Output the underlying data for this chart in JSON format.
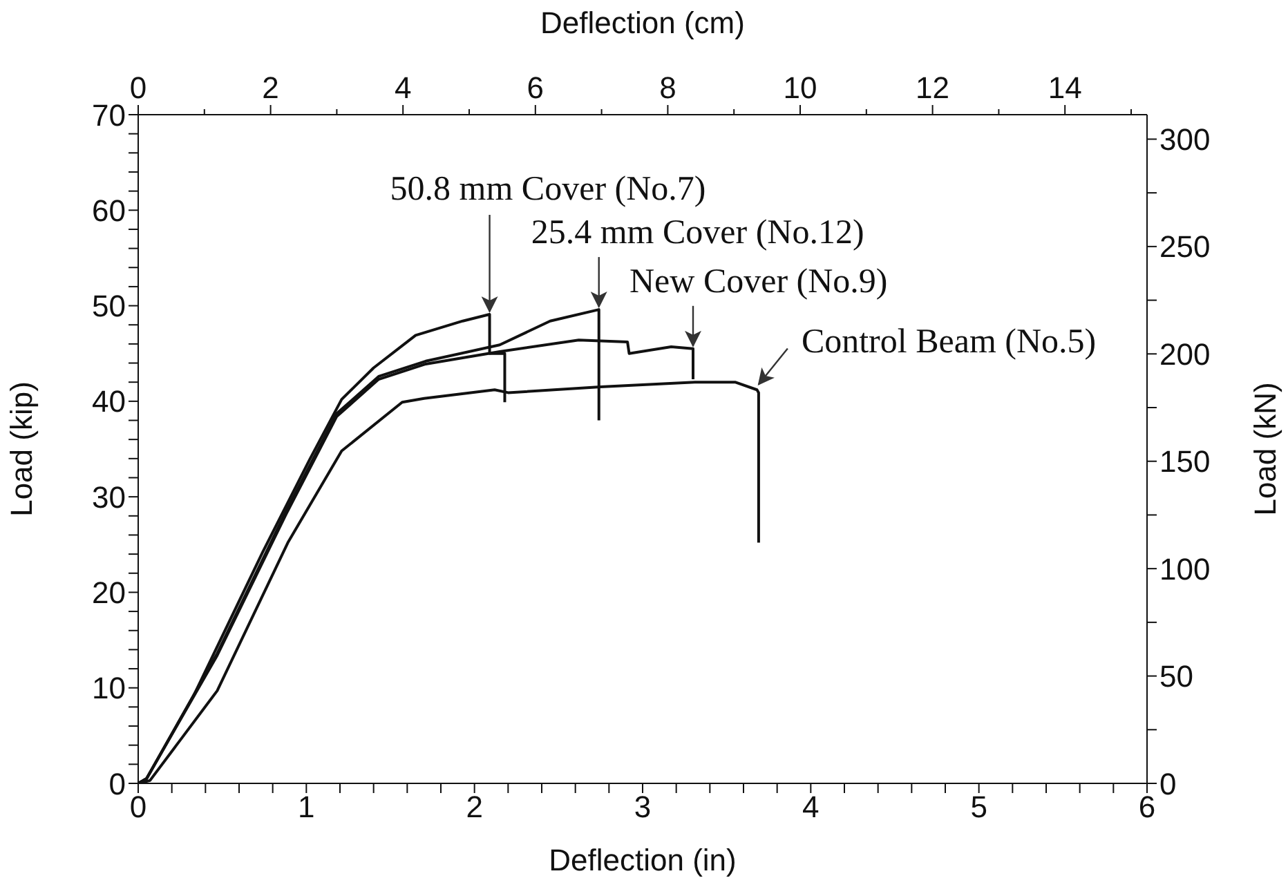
{
  "chart_data": {
    "type": "line",
    "xlabel": "Deflection (in)",
    "ylabel": "Load (kip)",
    "x2label": "Deflection (cm)",
    "y2label": "Load (kN)",
    "xlim": [
      0,
      6
    ],
    "xticks": [
      0,
      {
        "value": 0.2,
        "label": null
      },
      {
        "value": 0.4,
        "label": null
      },
      {
        "value": 0.6,
        "label": null
      },
      {
        "value": 0.8,
        "label": null
      },
      1,
      {
        "value": 1.2,
        "label": null
      },
      {
        "value": 1.4,
        "label": null
      },
      {
        "value": 1.6,
        "label": null
      },
      {
        "value": 1.8,
        "label": null
      },
      2,
      {
        "value": 2.2,
        "label": null
      },
      {
        "value": 2.4,
        "label": null
      },
      {
        "value": 2.6,
        "label": null
      },
      {
        "value": 2.8,
        "label": null
      },
      3,
      {
        "value": 3.2,
        "label": null
      },
      {
        "value": 3.4,
        "label": null
      },
      {
        "value": 3.6,
        "label": null
      },
      {
        "value": 3.8,
        "label": null
      },
      4,
      {
        "value": 4.2,
        "label": null
      },
      {
        "value": 4.4,
        "label": null
      },
      {
        "value": 4.6,
        "label": null
      },
      {
        "value": 4.8,
        "label": null
      },
      5,
      {
        "value": 5.2,
        "label": null
      },
      {
        "value": 5.4,
        "label": null
      },
      {
        "value": 5.6,
        "label": null
      },
      {
        "value": 5.8,
        "label": null
      },
      6
    ],
    "x2lim": [
      0,
      15.24
    ],
    "x2ticks": [
      0,
      {
        "value": 1,
        "label": null
      },
      2,
      {
        "value": 3,
        "label": null
      },
      4,
      {
        "value": 5,
        "label": null
      },
      6,
      {
        "value": 7,
        "label": null
      },
      8,
      {
        "value": 9,
        "label": null
      },
      10,
      {
        "value": 11,
        "label": null
      },
      12,
      {
        "value": 13,
        "label": null
      },
      14,
      {
        "value": 15,
        "label": null
      }
    ],
    "ylim": [
      0,
      70
    ],
    "yticks": [
      0,
      {
        "value": 2,
        "label": null
      },
      {
        "value": 4,
        "label": null
      },
      {
        "value": 6,
        "label": null
      },
      {
        "value": 8,
        "label": null
      },
      10,
      {
        "value": 12,
        "label": null
      },
      {
        "value": 14,
        "label": null
      },
      {
        "value": 16,
        "label": null
      },
      {
        "value": 18,
        "label": null
      },
      20,
      {
        "value": 22,
        "label": null
      },
      {
        "value": 24,
        "label": null
      },
      {
        "value": 26,
        "label": null
      },
      {
        "value": 28,
        "label": null
      },
      30,
      {
        "value": 32,
        "label": null
      },
      {
        "value": 34,
        "label": null
      },
      {
        "value": 36,
        "label": null
      },
      {
        "value": 38,
        "label": null
      },
      40,
      {
        "value": 42,
        "label": null
      },
      {
        "value": 44,
        "label": null
      },
      {
        "value": 46,
        "label": null
      },
      {
        "value": 48,
        "label": null
      },
      50,
      {
        "value": 52,
        "label": null
      },
      {
        "value": 54,
        "label": null
      },
      {
        "value": 56,
        "label": null
      },
      {
        "value": 58,
        "label": null
      },
      60,
      {
        "value": 62,
        "label": null
      },
      {
        "value": 64,
        "label": null
      },
      {
        "value": 66,
        "label": null
      },
      {
        "value": 68,
        "label": null
      },
      70
    ],
    "y2lim": [
      0,
      311.4
    ],
    "y2ticks": [
      0,
      {
        "value": 25,
        "label": null
      },
      50,
      {
        "value": 75,
        "label": null
      },
      100,
      {
        "value": 125,
        "label": null
      },
      150,
      {
        "value": 175,
        "label": null
      },
      200,
      {
        "value": 225,
        "label": null
      },
      250,
      {
        "value": 275,
        "label": null
      },
      300
    ],
    "grid": false,
    "legend": false,
    "marker": "none",
    "line_style": "solid",
    "series": [
      {
        "color": "#111111",
        "x": [
          0,
          0.05,
          0.33,
          0.74,
          1.02,
          1.21,
          1.4,
          1.65,
          1.93,
          2.09,
          2.09,
          2.18,
          2.18
        ],
        "values": [
          0,
          0.5,
          9.2,
          24.2,
          33.9,
          40.2,
          43.5,
          46.9,
          48.4,
          49.1,
          45.0,
          45.0,
          39.9
        ]
      },
      {
        "color": "#111111",
        "x": [
          0,
          0.05,
          0.47,
          0.88,
          1.18,
          1.43,
          1.71,
          2.15,
          2.45,
          2.74,
          2.74
        ],
        "values": [
          0,
          0.5,
          13.6,
          28.5,
          38.7,
          42.6,
          44.2,
          45.9,
          48.4,
          49.6,
          38.0
        ]
      },
      {
        "color": "#111111",
        "x": [
          0,
          0.05,
          0.47,
          0.88,
          1.18,
          1.43,
          1.71,
          2.15,
          2.62,
          2.91,
          2.92,
          3.17,
          3.3,
          3.3
        ],
        "values": [
          0,
          0.5,
          13.4,
          28.2,
          38.4,
          42.3,
          43.9,
          45.2,
          46.4,
          46.2,
          45.0,
          45.7,
          45.5,
          42.3
        ]
      },
      {
        "color": "#111111",
        "x": [
          0,
          0.07,
          0.47,
          0.89,
          1.21,
          1.57,
          1.7,
          2.12,
          2.2,
          2.75,
          3.31,
          3.55,
          3.68,
          3.69,
          3.69
        ],
        "values": [
          0,
          0.3,
          9.7,
          25.2,
          34.8,
          39.9,
          40.3,
          41.2,
          40.9,
          41.5,
          42.0,
          42.0,
          41.2,
          40.9,
          25.2
        ]
      }
    ],
    "annotations": [
      {
        "text": "50.8 mm Cover (No.7)",
        "x": 2.09,
        "y": 49.1
      },
      {
        "text": "25.4 mm Cover (No.12)",
        "x": 2.74,
        "y": 49.6
      },
      {
        "text": "New Cover (No.9)",
        "x": 3.3,
        "y": 45.5
      },
      {
        "text": "Control Beam (No.5)",
        "x": 3.69,
        "y": 40.9
      }
    ]
  }
}
